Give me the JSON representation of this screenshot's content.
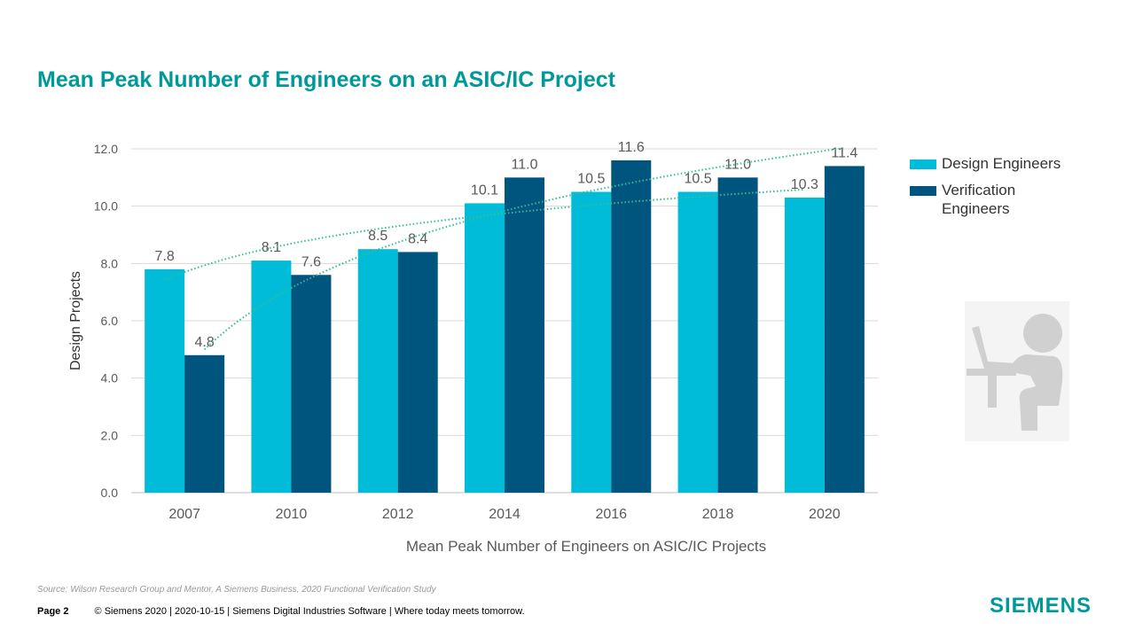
{
  "slide": {
    "title": "Mean Peak Number of Engineers on an ASIC/IC Project",
    "source": "Source:  Wilson Research Group and Mentor,  A Siemens Business, 2020 Functional Verification Study",
    "footer_page": "Page 2",
    "footer_text": "© Siemens 2020 | 2020-10-15 | Siemens Digital Industries Software | Where today meets tomorrow.",
    "logo": "SIEMENS",
    "icon": "person-at-computer-icon"
  },
  "chart_data": {
    "type": "bar",
    "title": "",
    "xlabel": "Mean Peak Number of Engineers on ASIC/IC Projects",
    "ylabel": "Design Projects",
    "categories": [
      "2007",
      "2010",
      "2012",
      "2014",
      "2016",
      "2018",
      "2020"
    ],
    "ylim": [
      0,
      12
    ],
    "yticks": [
      "0.0",
      "2.0",
      "4.0",
      "6.0",
      "8.0",
      "10.0",
      "12.0"
    ],
    "grid": true,
    "legend_position": "right",
    "trendlines": "logarithmic, dotted",
    "series": [
      {
        "name": "Design Engineers",
        "color": "#00BCD8",
        "values": [
          7.8,
          8.1,
          8.5,
          10.1,
          10.5,
          10.5,
          10.3
        ],
        "labels": [
          "7.8",
          "8.1",
          "8.5",
          "10.1",
          "10.5",
          "10.5",
          "10.3"
        ]
      },
      {
        "name": "Verification Engineers",
        "color": "#00557F",
        "values": [
          4.8,
          7.6,
          8.4,
          11.0,
          11.6,
          11.0,
          11.4
        ],
        "labels": [
          "4.8",
          "7.6",
          "8.4",
          "11.0",
          "11.6",
          "11.0",
          "11.4"
        ]
      }
    ],
    "trend_color": "#33BB99"
  }
}
